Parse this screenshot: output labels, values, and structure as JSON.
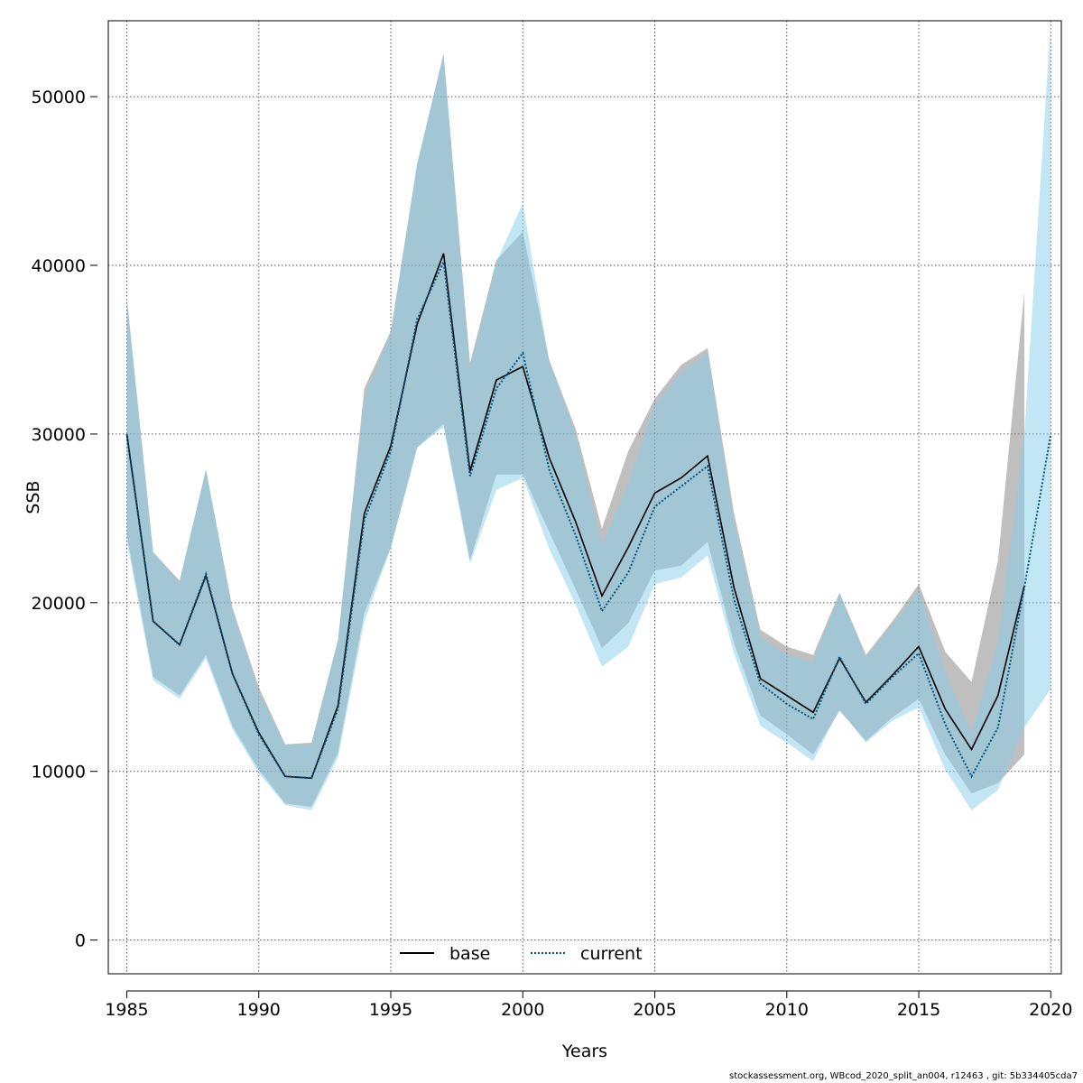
{
  "chart_data": {
    "type": "line",
    "title": "",
    "xlabel": "Years",
    "ylabel": "SSB",
    "xlim": [
      1984.3,
      2020.4
    ],
    "ylim": [
      -2000,
      54500
    ],
    "xticks": [
      1985,
      1990,
      1995,
      2000,
      2005,
      2010,
      2015,
      2020
    ],
    "yticks": [
      0,
      10000,
      20000,
      30000,
      40000,
      50000
    ],
    "grid": true,
    "legend_position": "bottom-center",
    "x": [
      1985,
      1986,
      1987,
      1988,
      1989,
      1990,
      1991,
      1992,
      1993,
      1994,
      1995,
      1996,
      1997,
      1998,
      1999,
      2000,
      2001,
      2002,
      2003,
      2004,
      2005,
      2006,
      2007,
      2008,
      2009,
      2010,
      2011,
      2012,
      2013,
      2014,
      2015,
      2016,
      2017,
      2018,
      2019,
      2020
    ],
    "series": [
      {
        "name": "base",
        "line_style": "solid",
        "line_color": "#000000",
        "band_color": "#808080",
        "x": [
          1985,
          1986,
          1987,
          1988,
          1989,
          1990,
          1991,
          1992,
          1993,
          1994,
          1995,
          1996,
          1997,
          1998,
          1999,
          2000,
          2001,
          2002,
          2003,
          2004,
          2005,
          2006,
          2007,
          2008,
          2009,
          2010,
          2011,
          2012,
          2013,
          2014,
          2015,
          2016,
          2017,
          2018,
          2019
        ],
        "values": [
          30000,
          18900,
          17500,
          21600,
          15800,
          12300,
          9700,
          9600,
          13900,
          25300,
          29300,
          36500,
          40700,
          27800,
          33200,
          34000,
          28600,
          24800,
          20400,
          23300,
          26500,
          27400,
          28700,
          20900,
          15500,
          14500,
          13500,
          16700,
          14100,
          15700,
          17400,
          13700,
          11300,
          14500,
          21000
        ],
        "upper": [
          38000,
          23000,
          21300,
          27900,
          19700,
          15000,
          11600,
          11700,
          17800,
          32700,
          36100,
          46000,
          52500,
          34200,
          40300,
          42000,
          34400,
          30300,
          24400,
          29000,
          32100,
          34100,
          35100,
          25300,
          18400,
          17400,
          16900,
          20600,
          16900,
          18900,
          21100,
          17100,
          15300,
          22500,
          38400
        ],
        "lower": [
          24000,
          15600,
          14500,
          16900,
          12700,
          10100,
          8100,
          7900,
          11100,
          19400,
          23300,
          29200,
          30600,
          22500,
          27600,
          27600,
          24200,
          20800,
          17300,
          18800,
          21900,
          22200,
          23600,
          17600,
          13300,
          12200,
          11000,
          13600,
          11800,
          13200,
          14300,
          11000,
          8700,
          9300,
          11000
        ]
      },
      {
        "name": "current",
        "line_style": "dotted",
        "line_color": "#00557f",
        "band_color": "#87ceeb",
        "values": [
          30000,
          18900,
          17500,
          21700,
          15800,
          12200,
          9700,
          9600,
          13700,
          24900,
          29000,
          36800,
          40200,
          27500,
          32700,
          34800,
          27900,
          24000,
          19500,
          21800,
          25700,
          26900,
          28100,
          20200,
          15200,
          14000,
          13100,
          16800,
          14000,
          15600,
          17000,
          12800,
          9700,
          12600,
          20900,
          30000
        ],
        "upper": [
          38200,
          23000,
          21200,
          27900,
          19600,
          14700,
          11600,
          11600,
          17700,
          32200,
          36000,
          46000,
          52600,
          33900,
          40200,
          43700,
          34300,
          30000,
          23400,
          27100,
          31700,
          33700,
          34800,
          24900,
          18000,
          16900,
          16500,
          20500,
          16800,
          18700,
          20700,
          15900,
          12300,
          17700,
          30000,
          54500
        ],
        "lower": [
          23600,
          15400,
          14300,
          16700,
          12500,
          9900,
          8000,
          7700,
          10800,
          18900,
          23200,
          29200,
          30400,
          22300,
          26700,
          27400,
          23200,
          19900,
          16200,
          17400,
          21100,
          21500,
          22800,
          17000,
          12700,
          11700,
          10600,
          13700,
          11700,
          13000,
          13800,
          10100,
          7700,
          8900,
          12600,
          14900
        ]
      }
    ]
  },
  "footer_text": "stockassessment.org, WBcod_2020_split_an004, r12463 , git: 5b334405cda7"
}
